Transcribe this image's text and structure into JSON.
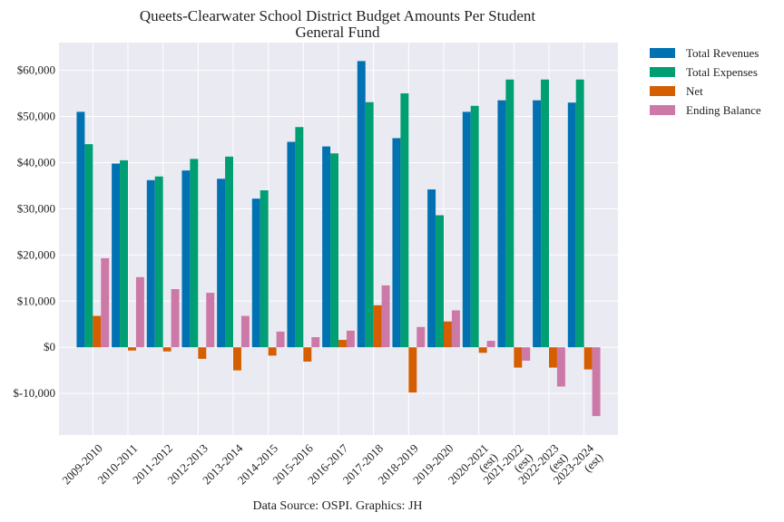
{
  "chart_data": {
    "type": "bar",
    "title": "Queets-Clearwater School District Budget Amounts Per Student",
    "subtitle": "General Fund",
    "source": "Data Source: OSPI. Graphics: JH",
    "xlabel": "",
    "ylabel": "",
    "ylim": [
      -19000,
      66000
    ],
    "yticks": [
      -10000,
      0,
      10000,
      20000,
      30000,
      40000,
      50000,
      60000
    ],
    "ytick_labels": [
      "$-10,000",
      "$0",
      "$10,000",
      "$20,000",
      "$30,000",
      "$40,000",
      "$50,000",
      "$60,000"
    ],
    "grid": true,
    "legend_position": "outside-top-right",
    "categories": [
      [
        "2009-2010"
      ],
      [
        "2010-2011"
      ],
      [
        "2011-2012"
      ],
      [
        "2012-2013"
      ],
      [
        "2013-2014"
      ],
      [
        "2014-2015"
      ],
      [
        "2015-2016"
      ],
      [
        "2016-2017"
      ],
      [
        "2017-2018"
      ],
      [
        "2018-2019"
      ],
      [
        "2019-2020"
      ],
      [
        "2020-2021",
        "(est)"
      ],
      [
        "2021-2022",
        "(est)"
      ],
      [
        "2022-2023",
        "(est)"
      ],
      [
        "2023-2024",
        "(est)"
      ]
    ],
    "series": [
      {
        "name": "Total Revenues",
        "color": "#0072b2",
        "values": [
          51000,
          39800,
          36200,
          38300,
          36500,
          32200,
          44500,
          43500,
          62000,
          45300,
          34200,
          51000,
          53500,
          53500,
          53000
        ]
      },
      {
        "name": "Total Expenses",
        "color": "#009e73",
        "values": [
          44000,
          40500,
          37000,
          40800,
          41300,
          34000,
          47700,
          42000,
          53100,
          55000,
          28600,
          52300,
          58000,
          58000,
          58000
        ]
      },
      {
        "name": "Net",
        "color": "#d55e00",
        "values": [
          6800,
          -700,
          -900,
          -2500,
          -5000,
          -1800,
          -3100,
          1600,
          9100,
          -9800,
          5600,
          -1200,
          -4400,
          -4400,
          -4800
        ]
      },
      {
        "name": "Ending Balance",
        "color": "#cc79a7",
        "values": [
          19300,
          15200,
          12600,
          11800,
          6800,
          3400,
          2200,
          3600,
          13400,
          4400,
          8000,
          1400,
          -2900,
          -8500,
          -14900
        ]
      }
    ]
  }
}
